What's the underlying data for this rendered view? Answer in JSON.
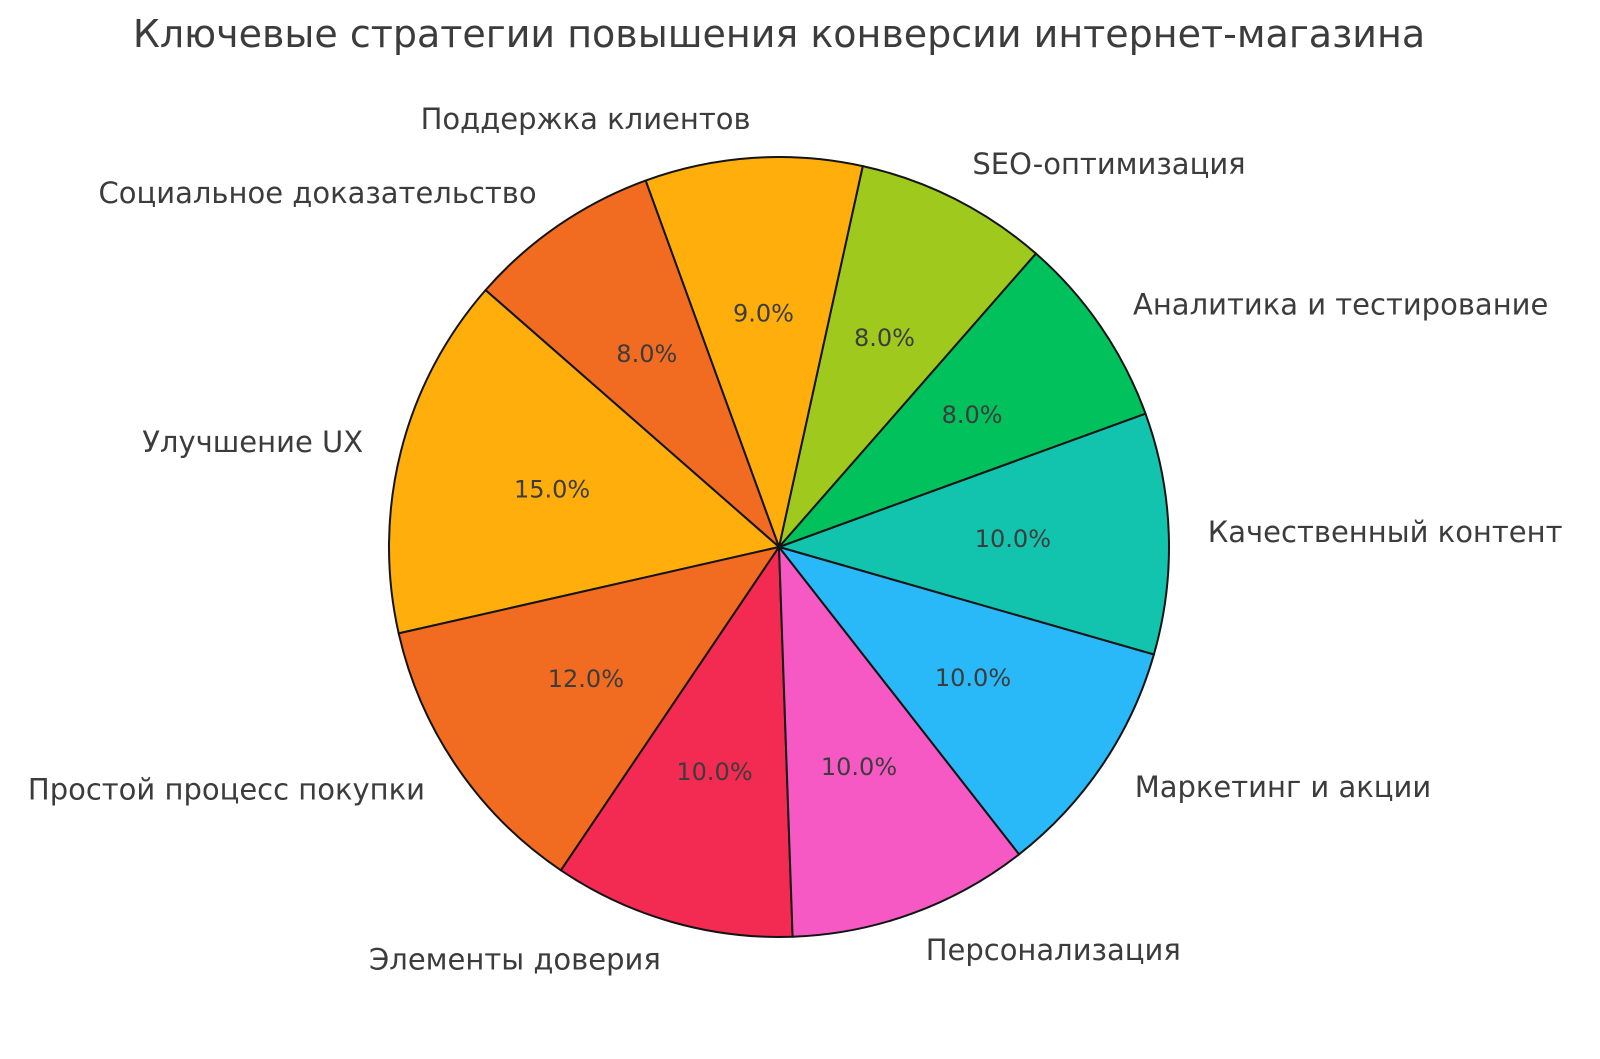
{
  "page": {
    "background_color": "#ffffff"
  },
  "chart_data": {
    "type": "pie",
    "title": "Ключевые стратегии повышения конверсии интернет-магазина",
    "start_angle_deg": -16,
    "direction": "counterclockwise",
    "text_color": "#3c3c3c",
    "edge_color": "#141414",
    "legend": "none",
    "slices": [
      {
        "label": "Качественный контент",
        "value": 10.0,
        "percent_label": "10.0%",
        "color": "#12c3ae"
      },
      {
        "label": "Аналитика и тестирование",
        "value": 8.0,
        "percent_label": "8.0%",
        "color": "#00c15c"
      },
      {
        "label": "SEO-оптимизация",
        "value": 8.0,
        "percent_label": "8.0%",
        "color": "#9fca1d"
      },
      {
        "label": "Поддержка клиентов",
        "value": 9.0,
        "percent_label": "9.0%",
        "color": "#ffae0b"
      },
      {
        "label": "Социальное доказательство",
        "value": 8.0,
        "percent_label": "8.0%",
        "color": "#f16b21"
      },
      {
        "label": "Улучшение UX",
        "value": 15.0,
        "percent_label": "15.0%",
        "color": "#ffae0b"
      },
      {
        "label": "Простой процесс покупки",
        "value": 12.0,
        "percent_label": "12.0%",
        "color": "#f16b21"
      },
      {
        "label": "Элементы доверия",
        "value": 10.0,
        "percent_label": "10.0%",
        "color": "#f32a52"
      },
      {
        "label": "Персонализация",
        "value": 10.0,
        "percent_label": "10.0%",
        "color": "#f659c4"
      },
      {
        "label": "Маркетинг и акции",
        "value": 10.0,
        "percent_label": "10.0%",
        "color": "#29b8f8"
      }
    ]
  }
}
